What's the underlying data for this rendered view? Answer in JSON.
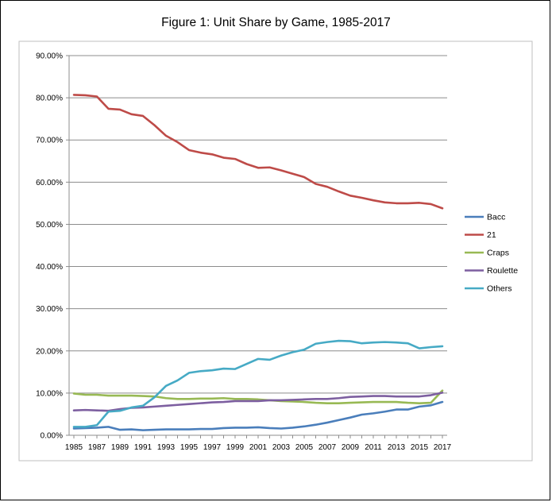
{
  "chart_data": {
    "type": "line",
    "title": "Figure 1: Unit Share by Game, 1985-2017",
    "xlabel": "",
    "ylabel": "",
    "ylim": [
      0,
      90
    ],
    "yticks": [
      "0.00%",
      "10.00%",
      "20.00%",
      "30.00%",
      "40.00%",
      "50.00%",
      "60.00%",
      "70.00%",
      "80.00%",
      "90.00%"
    ],
    "xticks": [
      "1985",
      "1987",
      "1989",
      "1991",
      "1993",
      "1995",
      "1997",
      "1999",
      "2001",
      "2003",
      "2005",
      "2007",
      "2009",
      "2011",
      "2013",
      "2015",
      "2017"
    ],
    "grid": "horizontal",
    "legend_position": "right",
    "x": [
      1985,
      1986,
      1987,
      1988,
      1989,
      1990,
      1991,
      1992,
      1993,
      1994,
      1995,
      1996,
      1997,
      1998,
      1999,
      2000,
      2001,
      2002,
      2003,
      2004,
      2005,
      2006,
      2007,
      2008,
      2009,
      2010,
      2011,
      2012,
      2013,
      2014,
      2015,
      2016,
      2017
    ],
    "series": [
      {
        "name": "Bacc",
        "color": "#4a7ebb",
        "values": [
          1.6,
          1.7,
          1.8,
          2.0,
          1.3,
          1.4,
          1.2,
          1.3,
          1.4,
          1.4,
          1.4,
          1.5,
          1.5,
          1.7,
          1.8,
          1.8,
          1.9,
          1.7,
          1.6,
          1.8,
          2.1,
          2.5,
          3.0,
          3.6,
          4.2,
          4.9,
          5.2,
          5.6,
          6.1,
          6.1,
          6.8,
          7.1,
          7.9
        ]
      },
      {
        "name": "21",
        "color": "#be4b48",
        "values": [
          80.7,
          80.6,
          80.3,
          77.4,
          77.2,
          76.1,
          75.7,
          73.5,
          71.0,
          69.5,
          67.6,
          67.0,
          66.6,
          65.8,
          65.5,
          64.3,
          63.4,
          63.5,
          62.8,
          62.0,
          61.2,
          59.6,
          58.9,
          57.8,
          56.8,
          56.3,
          55.7,
          55.2,
          55.0,
          55.0,
          55.1,
          54.8,
          53.8
        ]
      },
      {
        "name": "Craps",
        "color": "#98b954",
        "values": [
          9.9,
          9.6,
          9.6,
          9.4,
          9.4,
          9.4,
          9.3,
          9.2,
          8.8,
          8.6,
          8.6,
          8.7,
          8.7,
          8.8,
          8.6,
          8.6,
          8.5,
          8.3,
          8.1,
          8.0,
          7.9,
          7.7,
          7.6,
          7.6,
          7.7,
          7.8,
          7.9,
          7.9,
          7.9,
          7.7,
          7.6,
          7.7,
          10.6
        ]
      },
      {
        "name": "Roulette",
        "color": "#7d5fa0",
        "values": [
          5.9,
          6.0,
          5.9,
          5.8,
          6.2,
          6.5,
          6.6,
          6.8,
          7.0,
          7.2,
          7.4,
          7.6,
          7.8,
          7.9,
          8.1,
          8.1,
          8.1,
          8.3,
          8.3,
          8.4,
          8.5,
          8.6,
          8.6,
          8.8,
          9.1,
          9.2,
          9.3,
          9.3,
          9.2,
          9.2,
          9.2,
          9.5,
          10.1
        ]
      },
      {
        "name": "Others",
        "color": "#46aac5",
        "values": [
          2.0,
          2.0,
          2.4,
          5.6,
          5.8,
          6.6,
          7.0,
          9.0,
          11.7,
          13.0,
          14.8,
          15.2,
          15.4,
          15.8,
          15.7,
          16.9,
          18.1,
          17.9,
          18.9,
          19.7,
          20.3,
          21.7,
          22.1,
          22.4,
          22.3,
          21.8,
          22.0,
          22.1,
          22.0,
          21.8,
          20.6,
          20.9,
          21.1
        ]
      }
    ]
  }
}
